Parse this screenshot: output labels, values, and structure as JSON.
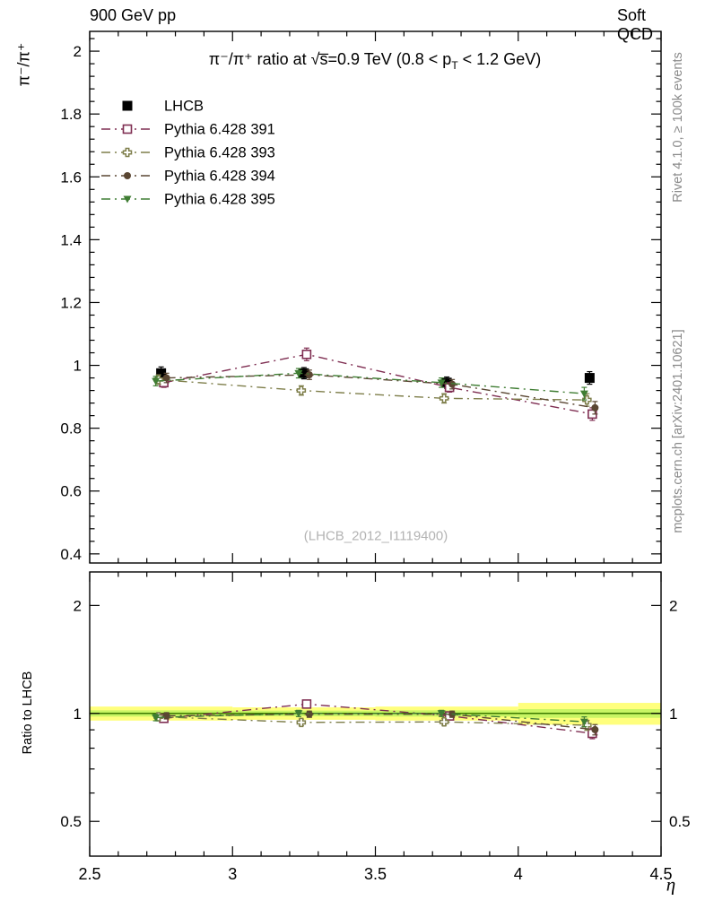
{
  "header": {
    "left": "900 GeV pp",
    "right": "Soft QCD"
  },
  "title": {
    "pre": "π⁻/π⁺ ratio at √s̅=0.9 TeV (0.8 < p",
    "sub": "T",
    "post": " < 1.2 GeV)"
  },
  "watermark": "(LHCB_2012_I1119400)",
  "side_notes": {
    "top": "Rivet 4.1.0, ≥ 100k events",
    "bottom": "mcplots.cern.ch [arXiv:2401.10621]"
  },
  "chart_data": {
    "type": "scatter",
    "x": [
      2.75,
      3.25,
      3.75,
      4.25
    ],
    "xlim": [
      2.5,
      4.5
    ],
    "xticks": [
      2.5,
      3,
      3.5,
      4,
      4.5
    ],
    "xtick_labels": [
      "2.5",
      "3",
      "3.5",
      "4",
      "4.5"
    ],
    "xlabel": "η",
    "main_panel": {
      "ylabel": "π⁻/π⁺",
      "scale": "linear",
      "ylim": [
        0.371,
        2.063
      ],
      "yticks": [
        0.4,
        0.6,
        0.8,
        1,
        1.2,
        1.4,
        1.6,
        1.8,
        2
      ]
    },
    "ratio_panel": {
      "ylabel": "Ratio to LHCB",
      "scale": "log",
      "ylim": [
        0.4,
        2.48
      ],
      "yticks": [
        0.5,
        1,
        2
      ],
      "minor_yticks": [
        0.6,
        0.7,
        0.8,
        0.9
      ],
      "band": {
        "bin_edges": [
          2.5,
          3.0,
          3.5,
          4.0,
          4.5
        ],
        "yellow_half_width": [
          0.045,
          0.04,
          0.045,
          0.07
        ],
        "green_half_width": [
          0.02,
          0.018,
          0.02,
          0.028
        ],
        "yellow_color": "#ffff7d",
        "green_color": "#c8f564",
        "center_line_color": "#3c7a00"
      }
    },
    "series": [
      {
        "name": "LHCB",
        "color": "#000000",
        "marker": "square-filled",
        "line": "none",
        "values": [
          0.975,
          0.975,
          0.945,
          0.96
        ],
        "errors": [
          0.02,
          0.018,
          0.018,
          0.02
        ]
      },
      {
        "name": "Pythia 6.428 391",
        "color": "#7f2e52",
        "marker": "square-open",
        "line": "dashdot",
        "values": [
          0.945,
          1.035,
          0.93,
          0.845
        ],
        "errors": [
          0.015,
          0.02,
          0.015,
          0.02
        ],
        "ratio": [
          0.969,
          1.062,
          0.984,
          0.88
        ],
        "ratio_errors": [
          0.02,
          0.025,
          0.02,
          0.03
        ]
      },
      {
        "name": "Pythia 6.428 393",
        "color": "#7e7e4a",
        "marker": "cross-open",
        "line": "dashdot",
        "values": [
          0.955,
          0.92,
          0.895,
          0.89
        ],
        "errors": [
          0.015,
          0.015,
          0.015,
          0.02
        ],
        "ratio": [
          0.979,
          0.944,
          0.947,
          0.927
        ],
        "ratio_errors": [
          0.02,
          0.02,
          0.02,
          0.03
        ]
      },
      {
        "name": "Pythia 6.428 394",
        "color": "#5a4632",
        "marker": "circle-filled",
        "line": "dashdot",
        "values": [
          0.96,
          0.97,
          0.94,
          0.865
        ],
        "errors": [
          0.015,
          0.015,
          0.015,
          0.02
        ],
        "ratio": [
          0.985,
          0.995,
          0.995,
          0.901
        ],
        "ratio_errors": [
          0.02,
          0.02,
          0.02,
          0.03
        ]
      },
      {
        "name": "Pythia 6.428 395",
        "color": "#3f7d33",
        "marker": "triangle-down-filled",
        "line": "dashdot",
        "values": [
          0.95,
          0.975,
          0.945,
          0.91
        ],
        "errors": [
          0.015,
          0.015,
          0.015,
          0.02
        ],
        "ratio": [
          0.974,
          1.0,
          1.0,
          0.948
        ],
        "ratio_errors": [
          0.02,
          0.02,
          0.02,
          0.03
        ]
      }
    ]
  }
}
